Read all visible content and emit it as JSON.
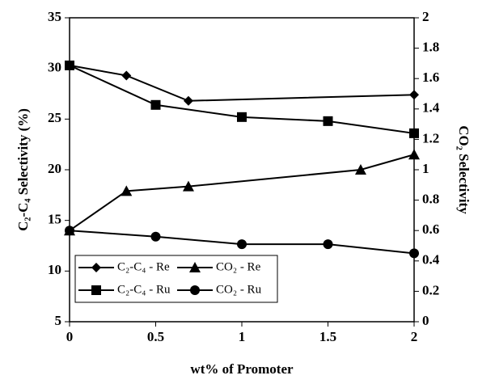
{
  "chart_data": {
    "type": "line",
    "x_label": "wt% of Promoter",
    "y_label": "C₂-C₄ Selectivity (%)",
    "y2_label": "CO₂ Selectivity",
    "xlim": [
      0,
      2
    ],
    "xticks": [
      0,
      0.5,
      1,
      1.5,
      2
    ],
    "ylim": [
      5,
      35
    ],
    "yticks": [
      5,
      10,
      15,
      20,
      25,
      30,
      35
    ],
    "y2lim": [
      0,
      2
    ],
    "y2ticks": [
      0,
      0.2,
      0.4,
      0.6,
      0.8,
      1,
      1.2,
      1.4,
      1.6,
      1.8,
      2
    ],
    "legend": "lower-left",
    "series": [
      {
        "name": "C₂-C₄ - Re",
        "color": "#000000",
        "marker": "diamond",
        "x": [
          0,
          0.33,
          0.69,
          2
        ],
        "values": [
          30.3,
          29.3,
          26.8,
          27.4
        ]
      },
      {
        "name": "CO₂ - Re",
        "color": "#000000",
        "marker": "triangle",
        "axis": "y2",
        "x": [
          0,
          0.33,
          0.69,
          1.69,
          2
        ],
        "values": [
          0.6,
          0.86,
          0.89,
          1.0,
          1.1
        ]
      },
      {
        "name": "C₂-C₄ - Ru",
        "color": "#000000",
        "marker": "square",
        "x": [
          0,
          0.5,
          1,
          1.5,
          2
        ],
        "values": [
          30.3,
          26.4,
          25.2,
          24.8,
          23.6
        ]
      },
      {
        "name": "CO₂ - Ru",
        "color": "#000000",
        "marker": "circle",
        "axis": "y2",
        "x": [
          0,
          0.5,
          1,
          1.5,
          2
        ],
        "values": [
          0.6,
          0.56,
          0.51,
          0.51,
          0.45
        ]
      }
    ]
  }
}
